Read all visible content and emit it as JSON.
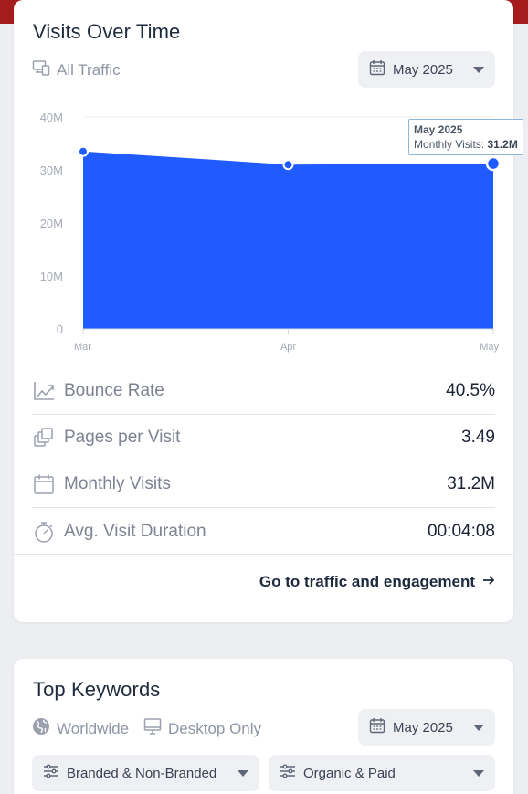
{
  "visits_card": {
    "title": "Visits Over Time",
    "filter_label": "All Traffic",
    "date_select": "May 2025",
    "tooltip": {
      "date": "May 2025",
      "label": "Monthly Visits: ",
      "value": "31.2M"
    },
    "metrics": [
      {
        "label": "Bounce Rate",
        "value": "40.5%",
        "icon": "trend-icon"
      },
      {
        "label": "Pages per Visit",
        "value": "3.49",
        "icon": "pages-icon"
      },
      {
        "label": "Monthly Visits",
        "value": "31.2M",
        "icon": "calendar-icon"
      },
      {
        "label": "Avg. Visit Duration",
        "value": "00:04:08",
        "icon": "stopwatch-icon"
      }
    ],
    "cta": "Go to traffic and engagement"
  },
  "chart_data": {
    "type": "area",
    "categories": [
      "Mar",
      "Apr",
      "May"
    ],
    "series": [
      {
        "values": [
          33.5,
          31.0,
          31.2
        ]
      }
    ],
    "y_ticks": [
      "0",
      "10M",
      "20M",
      "30M",
      "40M"
    ],
    "ylim": [
      0,
      40
    ],
    "grid": true,
    "color": "#1f5bff"
  },
  "keywords_card": {
    "title": "Top Keywords",
    "region": "Worldwide",
    "device": "Desktop Only",
    "date_select": "May 2025",
    "brand_select": "Branded & Non-Branded",
    "type_select": "Organic & Paid"
  },
  "colors": {
    "accent": "#1f5bff",
    "top_strip": "#a51c1c"
  }
}
